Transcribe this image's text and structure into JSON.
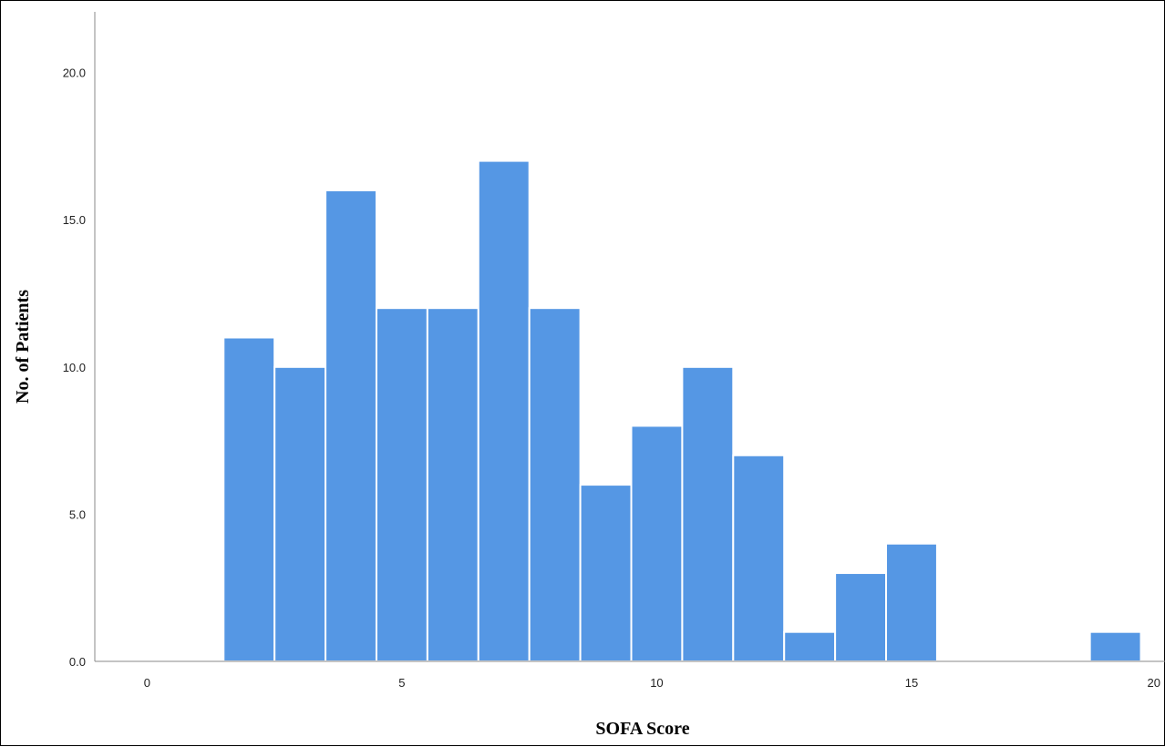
{
  "chart_data": {
    "type": "bar",
    "xlabel": "SOFA Score",
    "ylabel": "No. of Patients",
    "xlim": [
      -1,
      20
    ],
    "ylim": [
      0,
      22
    ],
    "xticks": [
      0,
      5,
      10,
      15,
      20
    ],
    "xtick_labels": [
      "0",
      "5",
      "10",
      "15",
      "20"
    ],
    "yticks": [
      0,
      5,
      10,
      15,
      20
    ],
    "ytick_labels": [
      "0.0",
      "5.0",
      "10.0",
      "15.0",
      "20.0"
    ],
    "bin_width": 1,
    "bins": [
      2,
      3,
      4,
      5,
      6,
      7,
      8,
      9,
      10,
      11,
      12,
      13,
      14,
      15,
      19
    ],
    "values": [
      11,
      10,
      16,
      12,
      12,
      17,
      12,
      6,
      8,
      10,
      7,
      1,
      3,
      4,
      1
    ],
    "bar_color": "#5597e4",
    "grid": false
  }
}
